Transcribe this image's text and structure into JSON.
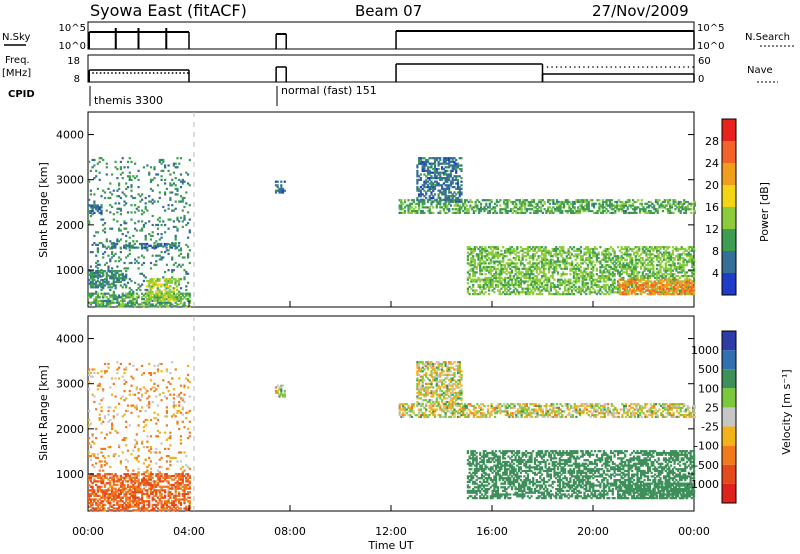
{
  "header": {
    "title": "Syowa East (fitACF)",
    "beam": "Beam 07",
    "date": "27/Nov/2009"
  },
  "strip_labels": {
    "nsky": "N.Sky",
    "nsky_ticks": [
      "10^5",
      "10^0"
    ],
    "nsearch": "N.Search",
    "freq": "Freq.",
    "freq_unit": "[MHz]",
    "freq_ticks": [
      "18",
      "8"
    ],
    "nave": "Nave",
    "nave_ticks": [
      "60",
      "0"
    ],
    "cpid": "CPID",
    "cpid_themis": "themis 3300",
    "cpid_normal": "normal (fast) 151"
  },
  "axes": {
    "ylabel": "Slant Range [km]",
    "yticks": [
      "4000",
      "3000",
      "2000",
      "1000"
    ],
    "xlabel": "Time UT",
    "xticks": [
      "00:00",
      "04:00",
      "08:00",
      "12:00",
      "16:00",
      "20:00",
      "00:00"
    ]
  },
  "colorbars": {
    "power": {
      "label": "Power [dB]",
      "ticks": [
        "28",
        "24",
        "20",
        "16",
        "12",
        "8",
        "4"
      ],
      "colors": [
        "#e8231e",
        "#f2642a",
        "#f19e1c",
        "#f4d516",
        "#8ccc3a",
        "#3d9d50",
        "#356e96",
        "#1f3cc8"
      ]
    },
    "velocity": {
      "label": "Velocity [m s⁻¹]",
      "ticks": [
        "1000",
        "500",
        "100",
        "25",
        "-25",
        "-100",
        "-500",
        "-1000"
      ],
      "colors": [
        "#2e3ca8",
        "#326eb0",
        "#3e8f5a",
        "#7cc83c",
        "#c6c6c6",
        "#f2b21a",
        "#f07a1c",
        "#e54a1c",
        "#e0221c"
      ]
    }
  },
  "chart_data": [
    {
      "type": "heatmap",
      "panel": "power",
      "title": "Syowa East (fitACF) Beam 07 27/Nov/2009",
      "xlabel": "Time UT",
      "ylabel": "Slant Range [km]",
      "x_range_hours": [
        0,
        24
      ],
      "y_range_km": [
        180,
        4500
      ],
      "colorbar_label": "Power [dB]",
      "colorbar_range": [
        0,
        30
      ],
      "regions": [
        {
          "t": [
            0.0,
            4.0
          ],
          "r": [
            180,
            3500
          ],
          "level_db": 8,
          "desc": "sparse scatter"
        },
        {
          "t": [
            0.0,
            1.5
          ],
          "r": [
            600,
            1000
          ],
          "level_db": 8
        },
        {
          "t": [
            0.0,
            4.0
          ],
          "r": [
            180,
            500
          ],
          "level_db": 10
        },
        {
          "t": [
            2.3,
            3.6
          ],
          "r": [
            300,
            800
          ],
          "level_db": 14
        },
        {
          "t": [
            0.9,
            3.6
          ],
          "r": [
            1480,
            1600
          ],
          "level_db": 6
        },
        {
          "t": [
            0.0,
            0.5
          ],
          "r": [
            2250,
            2450
          ],
          "level_db": 6
        },
        {
          "t": [
            7.4,
            7.8
          ],
          "r": [
            2700,
            2950
          ],
          "level_db": 6
        },
        {
          "t": [
            12.3,
            24.0
          ],
          "r": [
            2250,
            2550
          ],
          "level_db": 10
        },
        {
          "t": [
            13.0,
            14.8
          ],
          "r": [
            2500,
            3500
          ],
          "level_db": 6
        },
        {
          "t": [
            15.0,
            24.0
          ],
          "r": [
            450,
            1500
          ],
          "level_db": 12
        },
        {
          "t": [
            21.0,
            24.0
          ],
          "r": [
            450,
            800
          ],
          "level_db": 22
        }
      ]
    },
    {
      "type": "heatmap",
      "panel": "velocity",
      "xlabel": "Time UT",
      "ylabel": "Slant Range [km]",
      "x_range_hours": [
        0,
        24
      ],
      "y_range_km": [
        180,
        4500
      ],
      "colorbar_label": "Velocity [m s⁻¹]",
      "colorbar_ticks": [
        1000,
        500,
        100,
        25,
        -25,
        -100,
        -500,
        -1000
      ],
      "regions": [
        {
          "t": [
            0.0,
            4.0
          ],
          "r": [
            180,
            3500
          ],
          "velocity": -100,
          "desc": "sparse scatter"
        },
        {
          "t": [
            0.0,
            4.0
          ],
          "r": [
            180,
            1000
          ],
          "velocity": -500
        },
        {
          "t": [
            7.4,
            7.8
          ],
          "r": [
            2700,
            2950
          ],
          "velocity": 0
        },
        {
          "t": [
            12.3,
            24.0
          ],
          "r": [
            2250,
            2550
          ],
          "velocity": 0
        },
        {
          "t": [
            13.0,
            14.8
          ],
          "r": [
            2500,
            3500
          ],
          "velocity": 0
        },
        {
          "t": [
            15.0,
            24.0
          ],
          "r": [
            450,
            1500
          ],
          "velocity": 300
        },
        {
          "t": [
            21.0,
            24.0
          ],
          "r": [
            450,
            800
          ],
          "velocity": 300
        }
      ]
    }
  ]
}
